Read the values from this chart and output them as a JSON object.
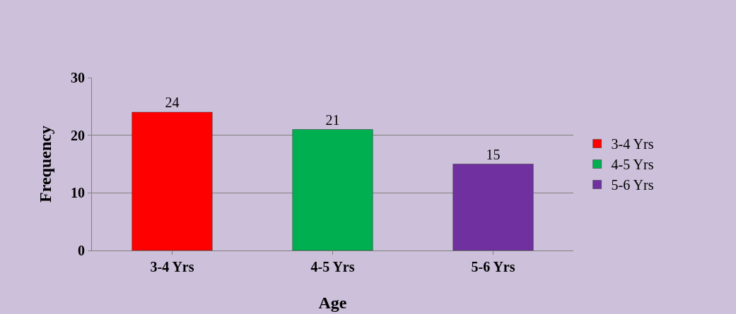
{
  "chart_data": {
    "type": "bar",
    "xlabel": "Age",
    "ylabel": "Frequency",
    "categories": [
      "3-4 Yrs",
      "4-5 Yrs",
      "5-6 Yrs"
    ],
    "series": [
      {
        "name": "3-4 Yrs",
        "color": "#ff0000",
        "values": [
          24,
          null,
          null
        ]
      },
      {
        "name": "4-5 Yrs",
        "color": "#00b050",
        "values": [
          null,
          21,
          null
        ]
      },
      {
        "name": "5-6 Yrs",
        "color": "#7030a0",
        "values": [
          null,
          null,
          15
        ]
      }
    ],
    "ylim": [
      0,
      30
    ],
    "yticks": [
      0,
      10,
      20,
      30
    ],
    "grid": "y",
    "legend": "right",
    "data_labels": true
  }
}
